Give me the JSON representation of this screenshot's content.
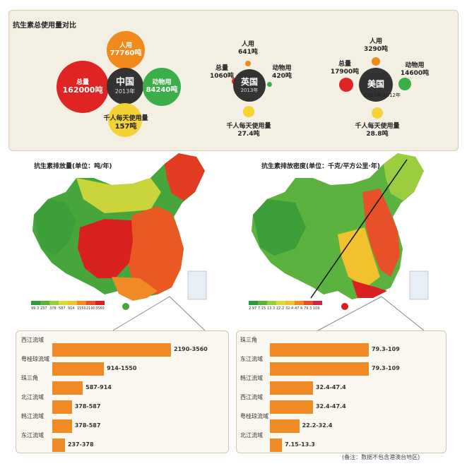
{
  "top_panel": {
    "title": "抗生素总使用量对比",
    "china": {
      "name": "中国",
      "year": "2013年",
      "human_label": "人用",
      "human_value": "77760吨",
      "total_label": "总量",
      "total_value": "162000吨",
      "animal_label": "动物用",
      "animal_value": "84240吨",
      "daily_label": "千人每天使用量",
      "daily_value": "157吨"
    },
    "uk": {
      "name": "英国",
      "year": "2013年",
      "human_label": "人用",
      "human_value": "641吨",
      "total_label": "总量",
      "total_value": "1060吨",
      "animal_label": "动物用",
      "animal_value": "420吨",
      "daily_label": "千人每天使用量",
      "daily_value": "27.4吨"
    },
    "usa": {
      "name": "美国",
      "year": "2011年/2012年",
      "human_label": "人用",
      "human_value": "3290吨",
      "total_label": "总量",
      "total_value": "17900吨",
      "animal_label": "动物用",
      "animal_value": "14600吨",
      "daily_label": "千人每天使用量",
      "daily_value": "28.8吨"
    },
    "colors": {
      "total": "#e02424",
      "human": "#f08a1c",
      "animal": "#3cae48",
      "daily": "#f2d234",
      "center": "#333333"
    }
  },
  "map_left": {
    "title": "抗生素排放量(单位：吨/年)",
    "legend_ticks": [
      "99.3",
      "237",
      "378",
      "587",
      "914",
      "1550",
      "2190",
      "3560"
    ],
    "legend_colors": [
      "#2e9b3a",
      "#5cb23e",
      "#9ccd3f",
      "#d8dd3a",
      "#f2c12e",
      "#f08a25",
      "#e8502a",
      "#d92020"
    ]
  },
  "map_right": {
    "title": "抗生素排放密度(单位：千克/平方公里·年)",
    "legend_ticks": [
      "2.97",
      "7.15",
      "13.3",
      "22.2",
      "32.4",
      "47.4",
      "79.3",
      "109"
    ],
    "legend_colors": [
      "#2e9b3a",
      "#5cb23e",
      "#9ccd3f",
      "#d8dd3a",
      "#f2c12e",
      "#f08a25",
      "#e8502a",
      "#c9283e"
    ]
  },
  "chart_data": [
    {
      "type": "bar",
      "title": "",
      "categories": [
        "西江流域",
        "粤桂琼流域",
        "珠三角",
        "北江流域",
        "韩江流域",
        "东江流域"
      ],
      "labels": [
        "2190-3560",
        "914-1550",
        "587-914",
        "378-587",
        "378-587",
        "237-378"
      ],
      "ranges": [
        [
          2190,
          3560
        ],
        [
          914,
          1550
        ],
        [
          587,
          914
        ],
        [
          378,
          587
        ],
        [
          378,
          587
        ],
        [
          237,
          378
        ]
      ],
      "values": [
        3560,
        1550,
        914,
        587,
        587,
        378
      ],
      "xlim": [
        0,
        3560
      ]
    },
    {
      "type": "bar",
      "title": "",
      "categories": [
        "珠三角",
        "东江流域",
        "韩江流域",
        "西江流域",
        "粤桂琼流域",
        "北江流域"
      ],
      "labels": [
        "79.3-109",
        "79.3-109",
        "32.4-47.4",
        "32.4-47.4",
        "22.2-32.4",
        "7.15-13.3"
      ],
      "ranges": [
        [
          79.3,
          109
        ],
        [
          79.3,
          109
        ],
        [
          32.4,
          47.4
        ],
        [
          32.4,
          47.4
        ],
        [
          22.2,
          32.4
        ],
        [
          7.15,
          13.3
        ]
      ],
      "values": [
        109,
        109,
        47.4,
        47.4,
        32.4,
        13.3
      ],
      "xlim": [
        0,
        109
      ]
    }
  ],
  "footnote": "(备注：数据不包含港澳台地区)"
}
